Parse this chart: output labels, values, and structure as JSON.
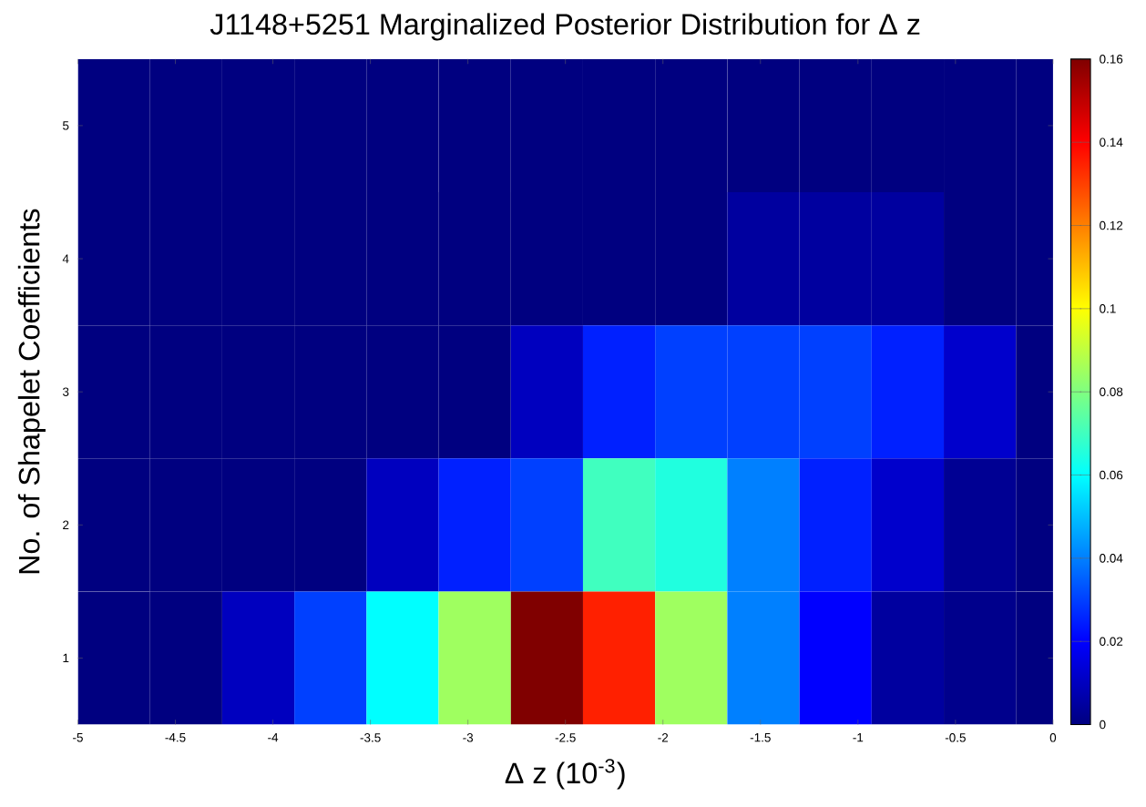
{
  "chart_data": {
    "type": "heatmap",
    "title": "J1148+5251 Marginalized Posterior Distribution for Δ z",
    "xlabel": "Δ z (10$^{-3}$)",
    "ylabel": "No. of Shapelet Coefficients",
    "x": [
      -4.815,
      -4.445,
      -4.075,
      -3.705,
      -3.335,
      -2.965,
      -2.595,
      -2.225,
      -1.855,
      -1.485,
      -1.115,
      -0.745,
      -0.375,
      -0.005
    ],
    "y_categories": [
      "5",
      "4",
      "3",
      "2",
      "1"
    ],
    "cells": [
      [
        0,
        0,
        0,
        0,
        0,
        0,
        0,
        0,
        0,
        0,
        0,
        0,
        0,
        0
      ],
      [
        0,
        0,
        0,
        0,
        0,
        0,
        0,
        0,
        0,
        0.005,
        0.005,
        0.005,
        0,
        0
      ],
      [
        0,
        0,
        0,
        0,
        0,
        0,
        0.01,
        0.025,
        0.03,
        0.03,
        0.03,
        0.025,
        0.012,
        0
      ],
      [
        0,
        0,
        0,
        0,
        0.01,
        0.025,
        0.03,
        0.07,
        0.065,
        0.04,
        0.025,
        0.012,
        0.003,
        0
      ],
      [
        0,
        0,
        0.01,
        0.03,
        0.06,
        0.085,
        0.16,
        0.135,
        0.085,
        0.04,
        0.02,
        0.005,
        0.002,
        0
      ]
    ],
    "xlim": [
      -5,
      0
    ],
    "xticks": [
      -5,
      -4.5,
      -4,
      -3.5,
      -3,
      -2.5,
      -2,
      -1.5,
      -1,
      -0.5,
      0
    ],
    "clim": [
      0,
      0.16
    ],
    "cticks": [
      0,
      0.02,
      0.04,
      0.06,
      0.08,
      0.1,
      0.12,
      0.14,
      0.16
    ]
  }
}
